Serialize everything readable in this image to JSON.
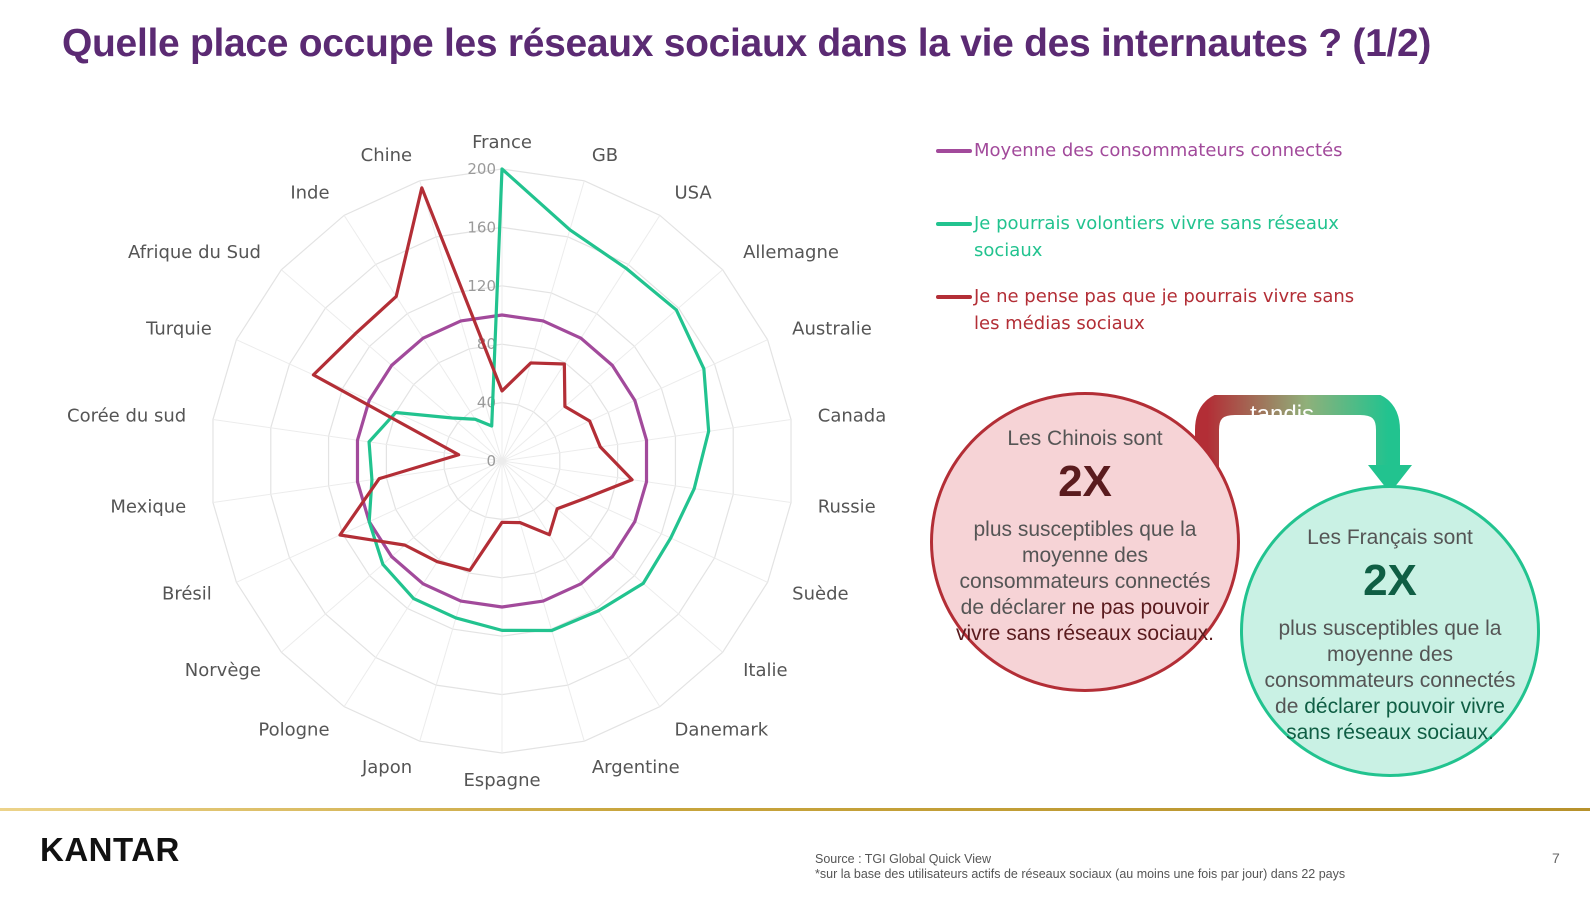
{
  "title": "Quelle place occupe les réseaux sociaux dans la vie des internautes ? (1/2)",
  "chart_data": {
    "type": "radar",
    "title": "",
    "categories": [
      "France",
      "GB",
      "USA",
      "Allemagne",
      "Australie",
      "Canada",
      "Russie",
      "Suède",
      "Italie",
      "Danemark",
      "Argentine",
      "Espagne",
      "Japon",
      "Pologne",
      "Norvège",
      "Brésil",
      "Mexique",
      "Corée du sud",
      "Turquie",
      "Afrique du Sud",
      "Inde",
      "Chine"
    ],
    "axis_ticks": [
      "0",
      "40",
      "80",
      "120",
      "160",
      "200"
    ],
    "rmin": 0,
    "rmax": 200,
    "grid": true,
    "legend_position": "right",
    "series": [
      {
        "name": "Moyenne des consommateurs connectés",
        "color": "#a24a9b",
        "values": [
          100,
          100,
          100,
          100,
          100,
          100,
          100,
          100,
          100,
          100,
          100,
          100,
          100,
          100,
          100,
          100,
          100,
          100,
          100,
          100,
          100,
          100
        ]
      },
      {
        "name": "Je pourrais volontiers vivre sans réseaux sociaux",
        "color": "#22c38f",
        "values": [
          200,
          165,
          157,
          158,
          152,
          143,
          133,
          127,
          128,
          122,
          121,
          116,
          112,
          112,
          108,
          100,
          90,
          92,
          80,
          45,
          34,
          25
        ]
      },
      {
        "name": "Je ne pense pas que je pourrais vivre sans les médias sociaux",
        "color": "#b32e36",
        "values": [
          48,
          70,
          79,
          57,
          66,
          68,
          90,
          62,
          50,
          60,
          44,
          42,
          78,
          82,
          88,
          122,
          85,
          30,
          142,
          133,
          134,
          195
        ]
      }
    ]
  },
  "callouts": {
    "chinois": {
      "lead": "Les Chinois sont",
      "big": "2X",
      "body_pre": "plus susceptibles que la moyenne des consommateurs connectés de déclarer ",
      "body_emph": "ne pas pouvoir vivre sans réseaux sociaux."
    },
    "francais": {
      "lead": "Les Français sont",
      "big": "2X",
      "body_pre": "plus susceptibles que la moyenne des consommateurs connectés de ",
      "body_emph": "déclarer pouvoir vivre sans réseaux sociaux."
    },
    "connector": "tandis"
  },
  "colors": {
    "title": "#5b2a73",
    "average": "#a24a9b",
    "green": "#22c38f",
    "red": "#b32e36"
  },
  "footer": {
    "logo": "KANTAR",
    "source_line1": "Source : TGI Global Quick View",
    "source_line2": "*sur la base des utilisateurs actifs de réseaux sociaux (au moins une fois par jour) dans 22 pays",
    "page": "7"
  }
}
